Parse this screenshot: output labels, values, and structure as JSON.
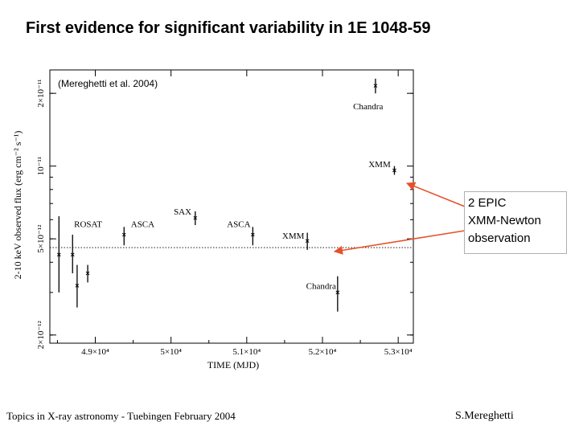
{
  "slide": {
    "title": "First evidence for significant variability in 1E 1048-59",
    "footer_left": "Topics in X-ray astronomy  -  Tuebingen  February 2004",
    "footer_right": "S.Mereghetti"
  },
  "callout": {
    "lines": [
      "2 EPIC",
      "XMM-Newton",
      "observation"
    ],
    "arrow_color": "#e8502a"
  },
  "chart_data": {
    "type": "scatter",
    "title": "",
    "annotation": "(Mereghetti et al. 2004)",
    "xlabel": "TIME (MJD)",
    "ylabel": "2-10 keV observed flux (erg cm⁻² s⁻¹)",
    "x_ticks": [
      {
        "value": 49000,
        "label": "4.9×10⁴"
      },
      {
        "value": 50000,
        "label": "5×10⁴"
      },
      {
        "value": 51000,
        "label": "5.1×10⁴"
      },
      {
        "value": 52000,
        "label": "5.2×10⁴"
      },
      {
        "value": 53000,
        "label": "5.3×10⁴"
      }
    ],
    "y_ticks": [
      {
        "value": 2e-12,
        "label": "2×10⁻¹²"
      },
      {
        "value": 5e-12,
        "label": "5×10⁻¹²"
      },
      {
        "value": 1e-11,
        "label": "10⁻¹¹"
      },
      {
        "value": 2e-11,
        "label": "2×10⁻¹¹"
      }
    ],
    "xlim": [
      48400,
      53200
    ],
    "ylim": [
      1.85e-12,
      2.5e-11
    ],
    "y_scale": "log",
    "reference_level": 4.6e-12,
    "points": [
      {
        "label": "",
        "x": 48520,
        "y": 4.3e-12,
        "ylo": 3e-12,
        "yhi": 6.2e-12
      },
      {
        "label": "",
        "x": 48700,
        "y": 4.3e-12,
        "ylo": 3.6e-12,
        "yhi": 5.2e-12
      },
      {
        "label": "",
        "x": 48760,
        "y": 3.2e-12,
        "ylo": 2.6e-12,
        "yhi": 3.9e-12
      },
      {
        "label": "",
        "x": 48900,
        "y": 3.6e-12,
        "ylo": 3.3e-12,
        "yhi": 3.9e-12
      },
      {
        "label": "ROSAT",
        "x": null,
        "y": null,
        "ylo": null,
        "yhi": null
      },
      {
        "label": "ASCA",
        "x": 49380,
        "y": 5.2e-12,
        "ylo": 4.7e-12,
        "yhi": 5.6e-12
      },
      {
        "label": "SAX",
        "x": 50320,
        "y": 6.1e-12,
        "ylo": 5.7e-12,
        "yhi": 6.5e-12
      },
      {
        "label": "ASCA",
        "x": 51080,
        "y": 5.2e-12,
        "ylo": 4.7e-12,
        "yhi": 5.6e-12
      },
      {
        "label": "XMM",
        "x": 51800,
        "y": 4.9e-12,
        "ylo": 4.5e-12,
        "yhi": 5.3e-12
      },
      {
        "label": "Chandra",
        "x": 52200,
        "y": 3e-12,
        "ylo": 2.5e-12,
        "yhi": 3.5e-12
      },
      {
        "label": "XMM",
        "x": 52950,
        "y": 9.6e-12,
        "ylo": 9.2e-12,
        "yhi": 1e-11
      },
      {
        "label": "Chandra",
        "x": 52700,
        "y": 2.15e-11,
        "ylo": 2e-11,
        "yhi": 2.3e-11
      }
    ],
    "labels": [
      "ROSAT",
      "ASCA",
      "SAX",
      "ASCA",
      "XMM",
      "Chandra",
      "XMM",
      "Chandra"
    ],
    "grid": false,
    "legend": "none"
  }
}
